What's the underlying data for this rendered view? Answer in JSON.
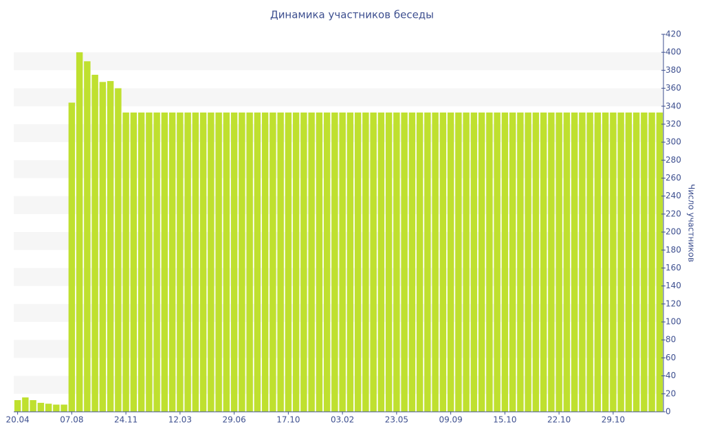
{
  "chart_data": {
    "type": "bar",
    "title": "Динамика участников беседы",
    "y_label": "Число участников",
    "categories": [
      "20.04",
      null,
      null,
      null,
      null,
      null,
      null,
      "07.08",
      null,
      null,
      null,
      null,
      null,
      null,
      "24.11",
      null,
      null,
      null,
      null,
      null,
      null,
      "12.03",
      null,
      null,
      null,
      null,
      null,
      null,
      "29.06",
      null,
      null,
      null,
      null,
      null,
      null,
      "17.10",
      null,
      null,
      null,
      null,
      null,
      null,
      "03.02",
      null,
      null,
      null,
      null,
      null,
      null,
      "23.05",
      null,
      null,
      null,
      null,
      null,
      null,
      "09.09",
      null,
      null,
      null,
      null,
      null,
      null,
      "15.10",
      null,
      null,
      null,
      null,
      null,
      null,
      "22.10",
      null,
      null,
      null,
      null,
      null,
      null,
      "29.10",
      null,
      null,
      null,
      null,
      null,
      null
    ],
    "values": [
      13,
      16,
      13,
      10,
      9,
      8,
      8,
      344,
      400,
      390,
      375,
      367,
      368,
      360,
      333,
      333,
      333,
      333,
      333,
      333,
      333,
      333,
      333,
      333,
      333,
      333,
      333,
      333,
      333,
      333,
      333,
      333,
      333,
      333,
      333,
      333,
      333,
      333,
      333,
      333,
      333,
      333,
      333,
      333,
      333,
      333,
      333,
      333,
      333,
      333,
      333,
      333,
      333,
      333,
      333,
      333,
      333,
      333,
      333,
      333,
      333,
      333,
      333,
      333,
      333,
      333,
      333,
      333,
      333,
      333,
      333,
      333,
      333,
      333,
      333,
      333,
      333,
      333,
      333,
      333,
      333,
      333,
      333,
      333
    ],
    "color": "#bfe02f",
    "ylim": [
      0,
      420
    ],
    "yticks": [
      0,
      20,
      40,
      60,
      80,
      100,
      120,
      140,
      160,
      180,
      200,
      220,
      240,
      260,
      280,
      300,
      320,
      340,
      360,
      380,
      400,
      420
    ],
    "grid": true
  }
}
